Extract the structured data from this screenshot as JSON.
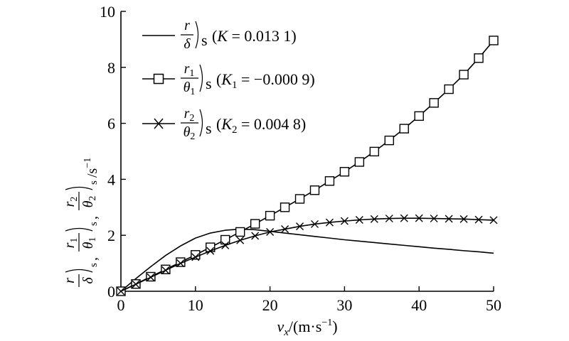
{
  "chart_data": {
    "type": "line",
    "xlabel": "v_x/(m·s^-1)",
    "xlabel_parts": {
      "var": "v",
      "sub": "x",
      "unit_open": "/(m·s",
      "unit_exp": "−1",
      "unit_close": ")"
    },
    "ylabel": "r/δ)s, r1/θ1)s, r2/θ2)s/s^-1",
    "ylabel_parts": {
      "r": "r",
      "delta": "δ",
      "r1": "r",
      "r1sub": "1",
      "theta1": "θ",
      "theta1sub": "1",
      "r2": "r",
      "r2sub": "2",
      "theta2": "θ",
      "theta2sub": "2",
      "s": "s",
      "comma": ",",
      "unit": "/s",
      "unit_exp": "−1"
    },
    "xlim": [
      0,
      50
    ],
    "ylim": [
      0,
      10
    ],
    "xticks": [
      "0",
      "10",
      "20",
      "30",
      "40",
      "50"
    ],
    "yticks": [
      "0",
      "2",
      "4",
      "6",
      "8",
      "10"
    ],
    "grid": false,
    "legend_position": "top-left",
    "series": [
      {
        "key": "r_delta",
        "marker": "none",
        "legend": {
          "num": "r",
          "den": "δ",
          "s": "s",
          "param": "K",
          "eq": " = 0.013 1)"
        },
        "x": [
          0,
          2,
          4,
          6,
          8,
          10,
          12,
          14,
          16,
          18,
          20,
          22,
          24,
          26,
          28,
          30,
          32,
          34,
          36,
          38,
          40,
          42,
          44,
          46,
          48,
          50
        ],
        "y": [
          0,
          0.45,
          0.88,
          1.28,
          1.62,
          1.9,
          2.08,
          2.18,
          2.22,
          2.2,
          2.14,
          2.08,
          2.02,
          1.96,
          1.9,
          1.84,
          1.79,
          1.74,
          1.69,
          1.64,
          1.59,
          1.54,
          1.5,
          1.45,
          1.41,
          1.36
        ]
      },
      {
        "key": "r1_theta1",
        "marker": "square",
        "legend": {
          "num": "r",
          "numsub": "1",
          "den": "θ",
          "densub": "1",
          "s": "s",
          "param": "K",
          "paramsub": "1",
          "eq": " = −0.000 9)"
        },
        "x": [
          0,
          2,
          4,
          6,
          8,
          10,
          12,
          14,
          16,
          18,
          20,
          22,
          24,
          26,
          28,
          30,
          32,
          34,
          36,
          38,
          40,
          42,
          44,
          46,
          48,
          50
        ],
        "y": [
          0,
          0.26,
          0.52,
          0.78,
          1.04,
          1.3,
          1.57,
          1.84,
          2.12,
          2.41,
          2.7,
          3.0,
          3.3,
          3.61,
          3.94,
          4.27,
          4.62,
          4.99,
          5.39,
          5.81,
          6.26,
          6.73,
          7.22,
          7.74,
          8.33,
          8.96
        ]
      },
      {
        "key": "r2_theta2",
        "marker": "cross",
        "legend": {
          "num": "r",
          "numsub": "2",
          "den": "θ",
          "densub": "2",
          "s": "s",
          "param": "K",
          "paramsub": "2",
          "eq": " = 0.004 8)"
        },
        "x": [
          0,
          2,
          4,
          6,
          8,
          10,
          12,
          14,
          16,
          18,
          20,
          22,
          24,
          26,
          28,
          30,
          32,
          34,
          36,
          38,
          40,
          42,
          44,
          46,
          48,
          50
        ],
        "y": [
          0,
          0.25,
          0.5,
          0.75,
          1.0,
          1.22,
          1.44,
          1.64,
          1.82,
          1.98,
          2.12,
          2.22,
          2.32,
          2.4,
          2.46,
          2.51,
          2.55,
          2.58,
          2.6,
          2.61,
          2.61,
          2.6,
          2.59,
          2.58,
          2.56,
          2.54
        ]
      }
    ]
  }
}
